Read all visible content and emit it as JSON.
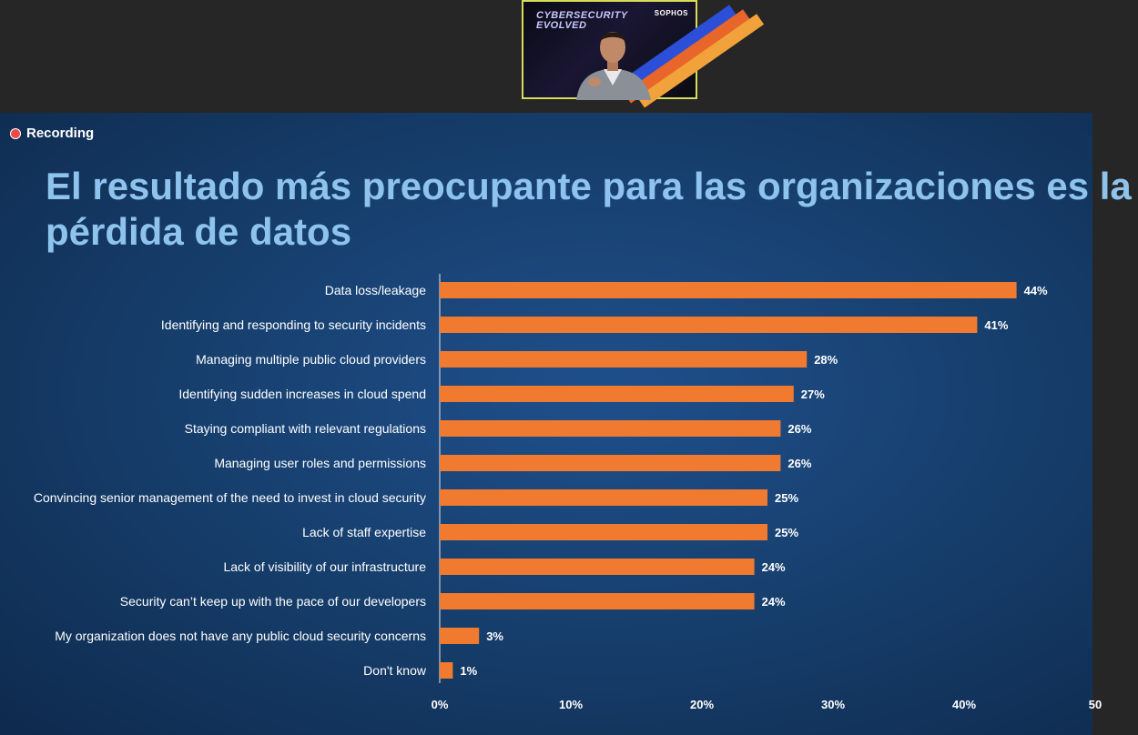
{
  "meeting": {
    "video_tile": {
      "brand_line1": "CYBERSECURITY",
      "brand_line2": "EVOLVED",
      "logo": "SOPHOS",
      "border_color": "#d6dc5a"
    },
    "recording": {
      "label": "Recording",
      "dot_color": "#e84a4a",
      "icon": "recording-dot-icon"
    }
  },
  "slide": {
    "title_line1": "El resultado más preocupante para las organizaciones es la",
    "title_line2": "pérdida de datos",
    "title_color": "#8ec3ee",
    "bar_color": "#f07a30"
  },
  "chart_data": {
    "type": "bar",
    "orientation": "horizontal",
    "categories": [
      "Data loss/leakage",
      "Identifying and responding to security incidents",
      "Managing multiple public cloud providers",
      "Identifying sudden increases in cloud spend",
      "Staying compliant with relevant regulations",
      "Managing user roles and permissions",
      "Convincing senior management of the need to invest in cloud security",
      "Lack of staff expertise",
      "Lack of visibility of our infrastructure",
      "Security can’t keep up with the pace of our developers",
      "My organization does not have any public cloud security concerns",
      "Don't know"
    ],
    "values": [
      44,
      41,
      28,
      27,
      26,
      26,
      25,
      25,
      24,
      24,
      3,
      1
    ],
    "value_labels": [
      "44%",
      "41%",
      "28%",
      "27%",
      "26%",
      "26%",
      "25%",
      "25%",
      "24%",
      "24%",
      "3%",
      "1%"
    ],
    "x_ticks": [
      0,
      10,
      20,
      30,
      40,
      50
    ],
    "x_tick_labels": [
      "0%",
      "10%",
      "20%",
      "30%",
      "40%",
      "50"
    ],
    "xlim": [
      0,
      50
    ],
    "grid": false,
    "legend": "none"
  }
}
